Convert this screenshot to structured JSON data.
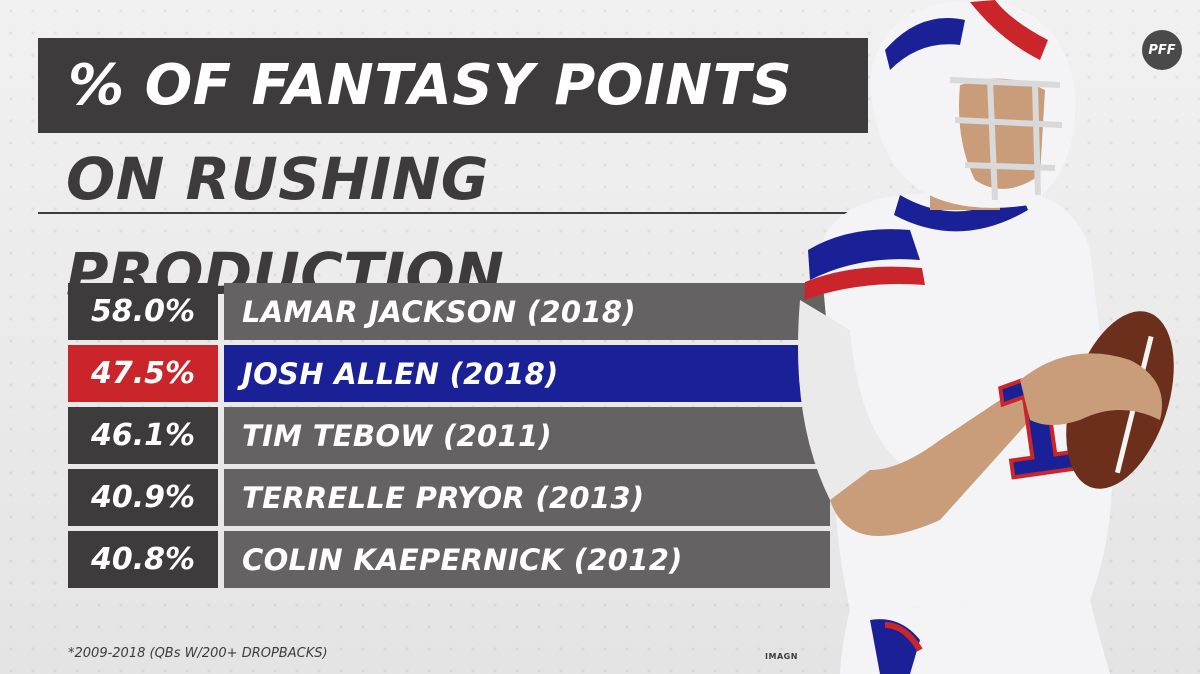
{
  "title": {
    "line1": "% OF FANTASY POINTS",
    "line2": "ON RUSHING PRODUCTION"
  },
  "logo_text": "PFF",
  "rows": [
    {
      "percent": "58.0%",
      "name": "LAMAR JACKSON (2018)",
      "highlight": false
    },
    {
      "percent": "47.5%",
      "name": "JOSH ALLEN (2018)",
      "highlight": true
    },
    {
      "percent": "46.1%",
      "name": "TIM TEBOW (2011)",
      "highlight": false
    },
    {
      "percent": "40.9%",
      "name": "TERRELLE PRYOR (2013)",
      "highlight": false
    },
    {
      "percent": "40.8%",
      "name": "COLIN KAEPERNICK (2012)",
      "highlight": false
    }
  ],
  "footnote": "*2009-2018 (QBs W/200+ DROPBACKS)",
  "photo_credit": "IMAGN",
  "colors": {
    "dark": "#3d3b3c",
    "gray": "#646263",
    "highlight_pct": "#c9252b",
    "highlight_name": "#1a2196"
  }
}
